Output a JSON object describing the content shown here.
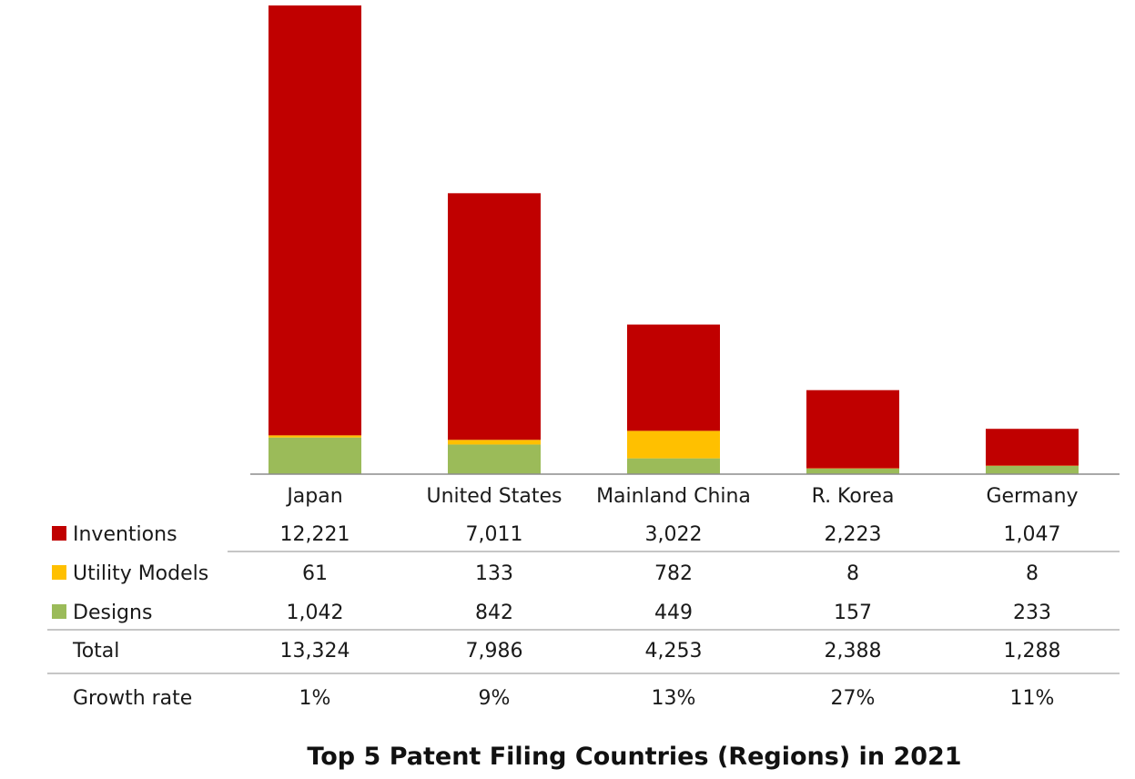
{
  "chart_data": {
    "type": "bar",
    "stacked": true,
    "title": "Top 5 Patent Filing Countries (Regions) in 2021",
    "categories": [
      "Japan",
      "United States",
      "Mainland China",
      "R. Korea",
      "Germany"
    ],
    "series": [
      {
        "name": "Inventions",
        "color": "#c00000",
        "values": [
          12221,
          7011,
          3022,
          2223,
          1047
        ]
      },
      {
        "name": "Utility Models",
        "color": "#ffc000",
        "values": [
          61,
          133,
          782,
          8,
          8
        ]
      },
      {
        "name": "Designs",
        "color": "#9bbb59",
        "values": [
          1042,
          842,
          449,
          157,
          233
        ]
      }
    ],
    "table_rows": [
      {
        "label": "Total",
        "values": [
          "13,324",
          "7,986",
          "4,253",
          "2,388",
          "1,288"
        ]
      },
      {
        "label": "Growth rate",
        "values": [
          "1%",
          "9%",
          "13%",
          "27%",
          "11%"
        ]
      }
    ],
    "legend_position": "data-table",
    "grid": false,
    "ylim": [
      0,
      13324
    ]
  }
}
